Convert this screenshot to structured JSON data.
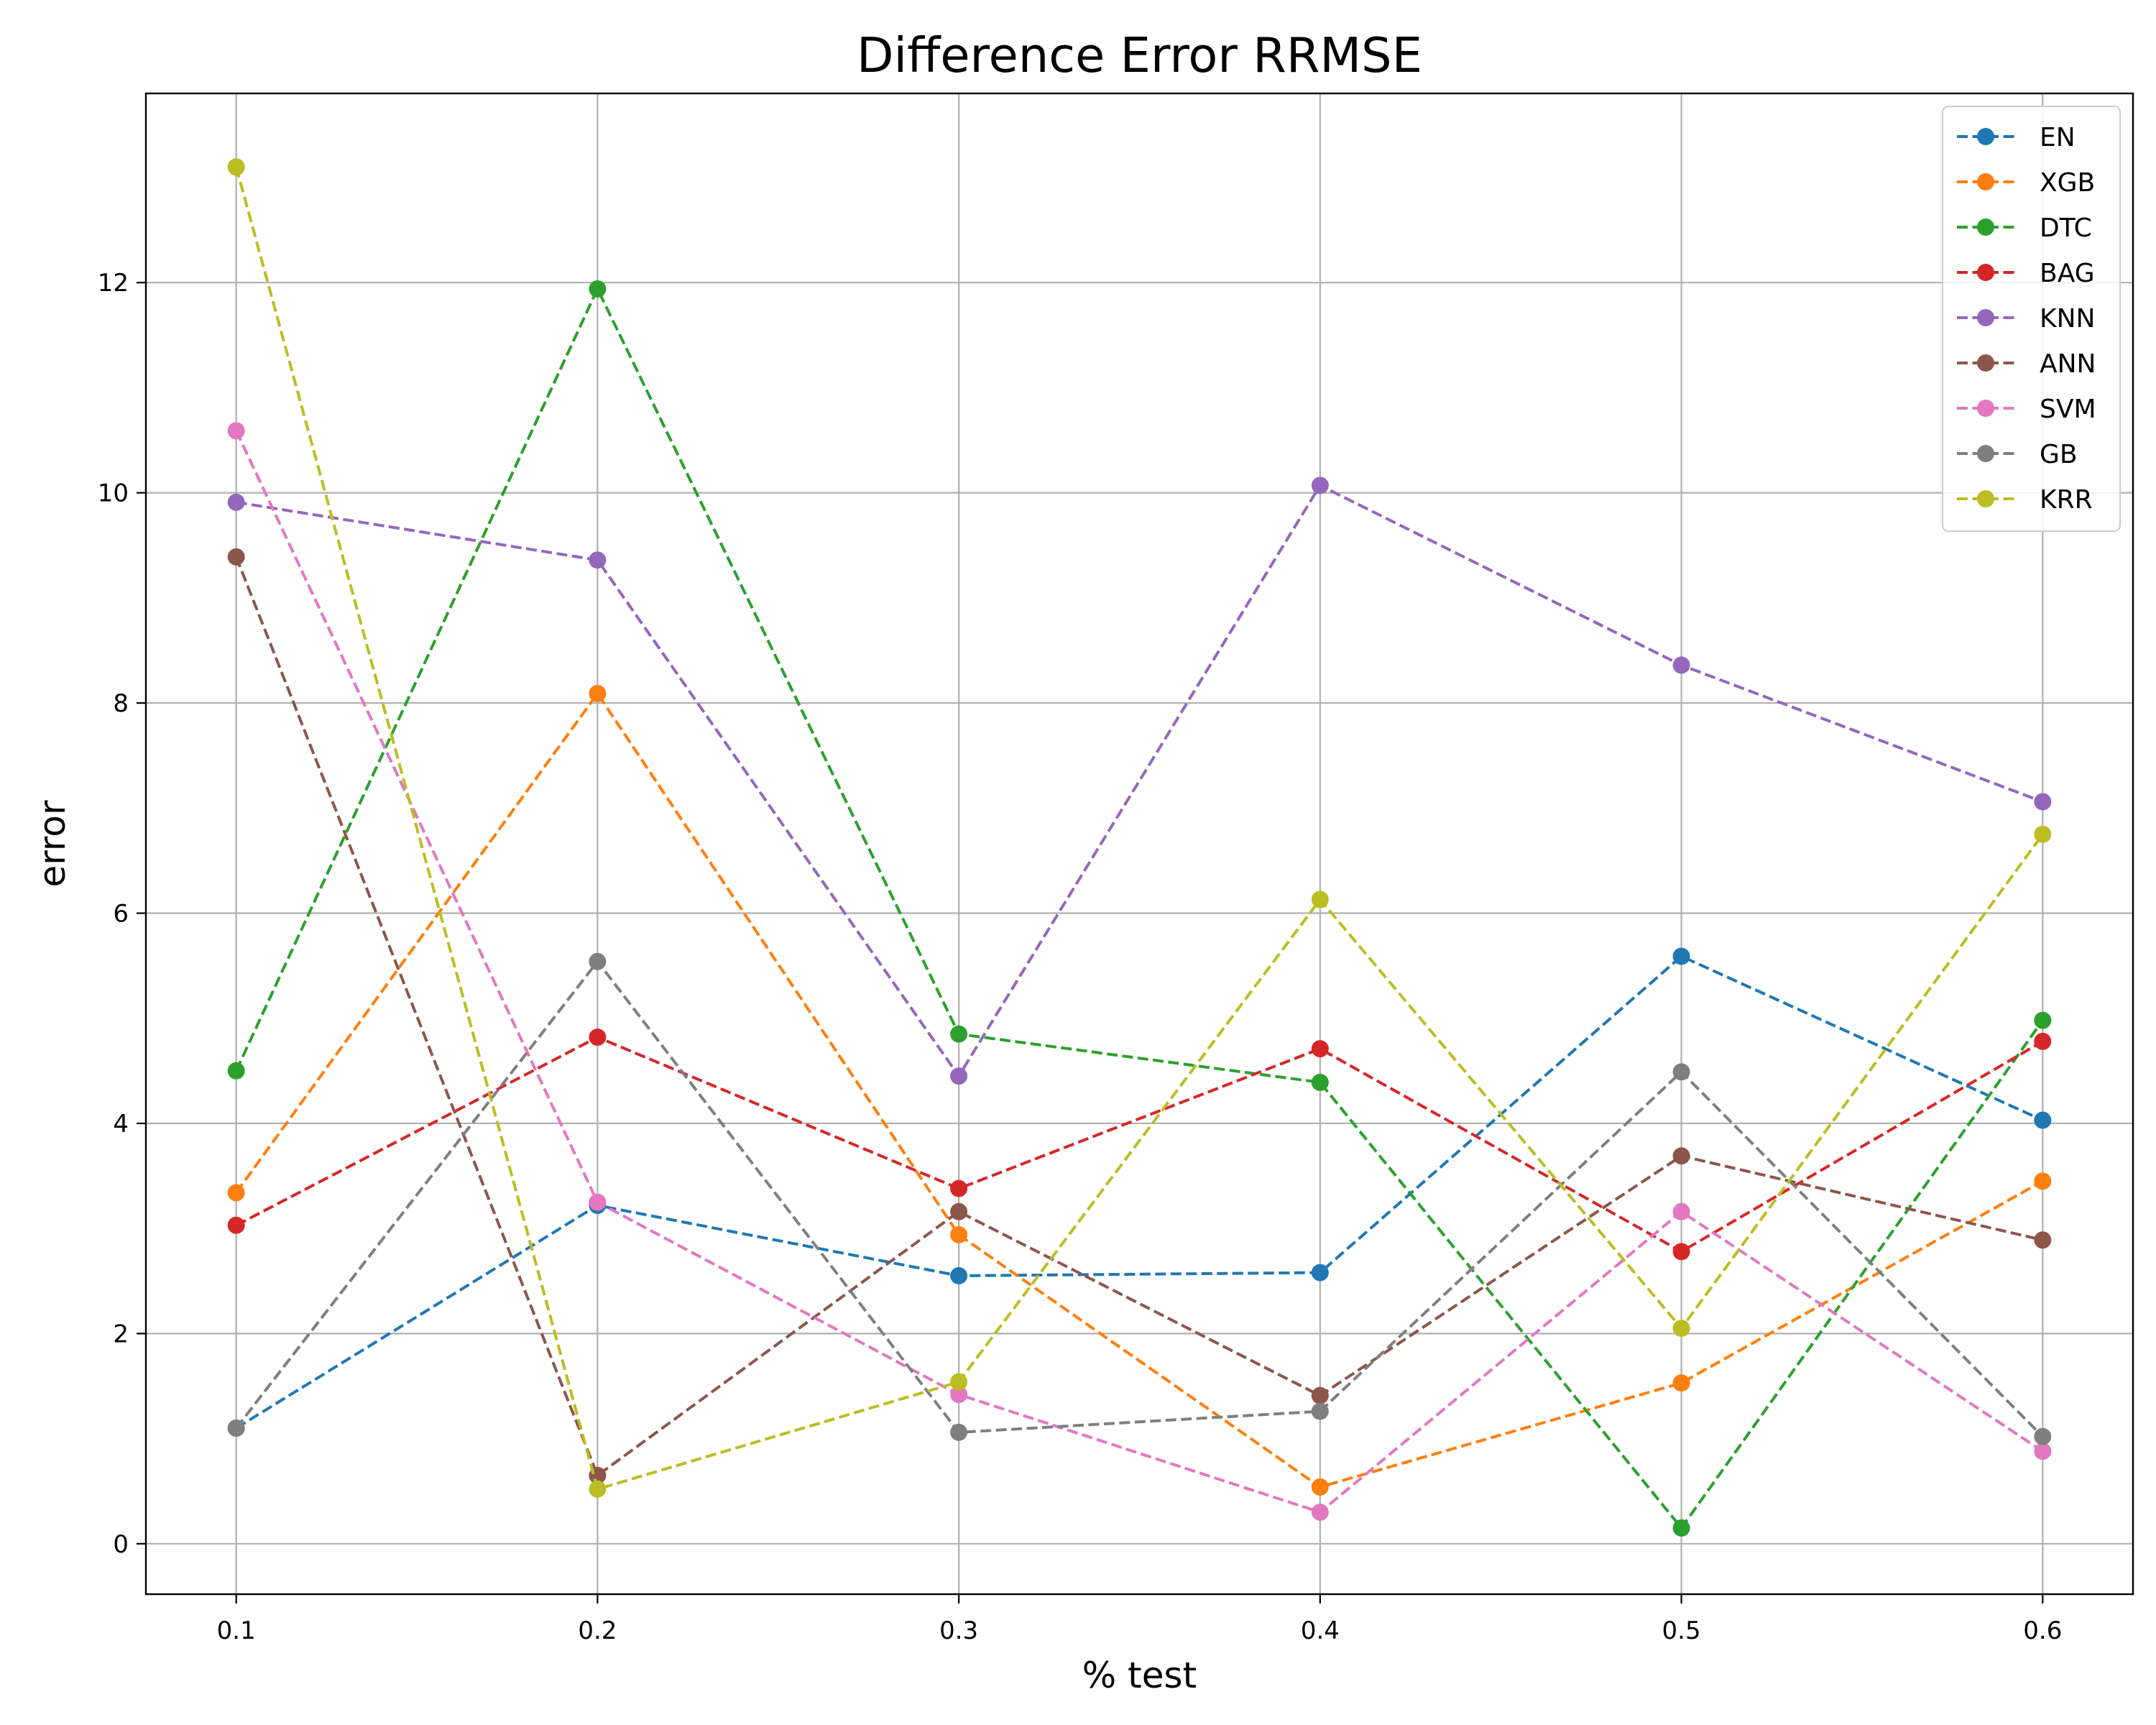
{
  "chart_data": {
    "type": "line",
    "title": "Difference Error RRMSE",
    "xlabel": "% test",
    "ylabel": "error",
    "x": [
      0.1,
      0.2,
      0.3,
      0.4,
      0.5,
      0.6
    ],
    "x_tick_labels": [
      "0.1",
      "0.2",
      "0.3",
      "0.4",
      "0.5",
      "0.6"
    ],
    "y_ticks": [
      0,
      2,
      4,
      6,
      8,
      10,
      12
    ],
    "y_tick_labels": [
      "0",
      "2",
      "4",
      "6",
      "8",
      "10",
      "12"
    ],
    "xlim": [
      0.075,
      0.625
    ],
    "ylim": [
      -0.48,
      13.8
    ],
    "grid": true,
    "legend_position": "top-right",
    "line_style": "dashed",
    "marker": "circle",
    "series": [
      {
        "name": "EN",
        "color": "#1f77b4",
        "values": [
          1.1,
          3.22,
          2.55,
          2.58,
          5.59,
          4.03
        ]
      },
      {
        "name": "XGB",
        "color": "#ff7f0e",
        "values": [
          3.34,
          8.09,
          2.94,
          0.54,
          1.53,
          3.45
        ]
      },
      {
        "name": "DTC",
        "color": "#2ca02c",
        "values": [
          4.5,
          11.94,
          4.85,
          4.39,
          0.15,
          4.98
        ]
      },
      {
        "name": "BAG",
        "color": "#d62728",
        "values": [
          3.03,
          4.82,
          3.38,
          4.71,
          2.78,
          4.78
        ]
      },
      {
        "name": "KNN",
        "color": "#9467bd",
        "values": [
          9.91,
          9.36,
          4.45,
          10.07,
          8.36,
          7.06
        ]
      },
      {
        "name": "ANN",
        "color": "#8c564b",
        "values": [
          9.39,
          0.65,
          3.16,
          1.41,
          3.69,
          2.89
        ]
      },
      {
        "name": "SVM",
        "color": "#e377c2",
        "values": [
          10.59,
          3.25,
          1.42,
          0.3,
          3.16,
          0.88
        ]
      },
      {
        "name": "GB",
        "color": "#7f7f7f",
        "values": [
          1.1,
          5.54,
          1.06,
          1.26,
          4.49,
          1.02
        ]
      },
      {
        "name": "KRR",
        "color": "#bcbd22",
        "values": [
          13.1,
          0.52,
          1.54,
          6.13,
          2.05,
          6.75
        ]
      }
    ]
  }
}
